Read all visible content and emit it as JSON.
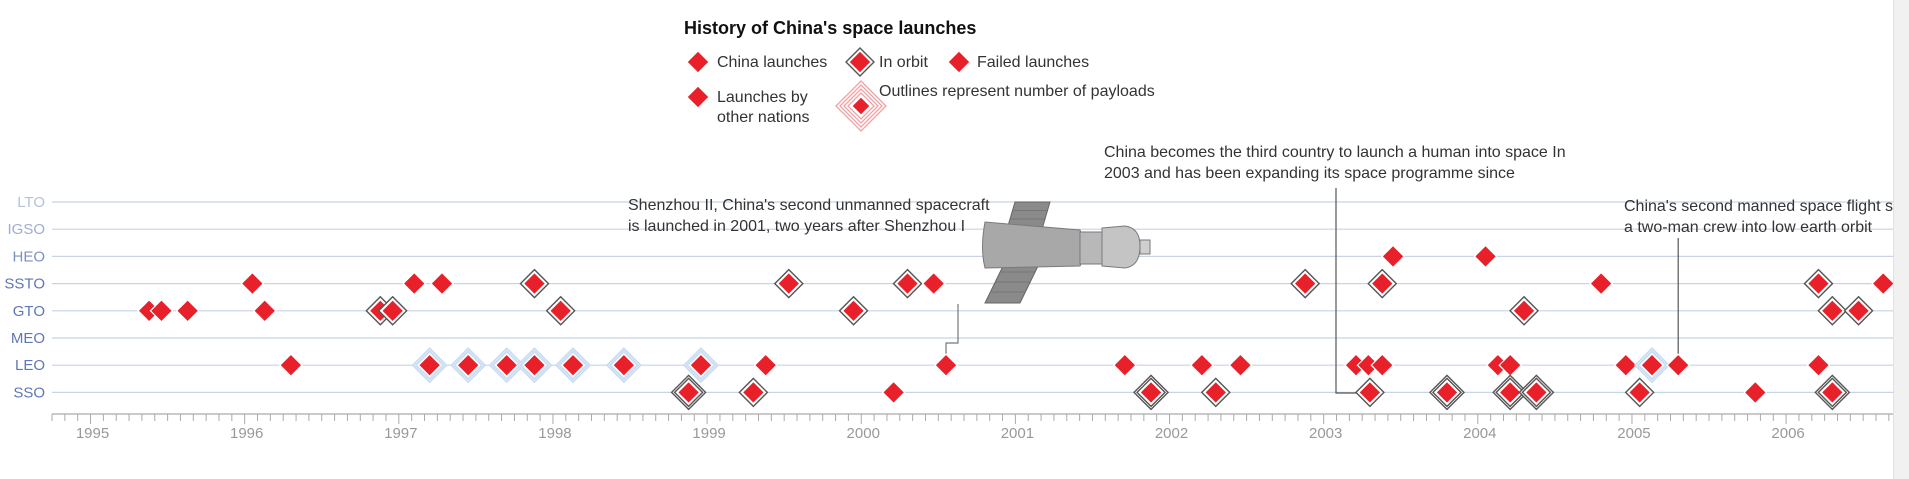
{
  "chart_data": {
    "type": "scatter",
    "title": "History of China's space launches",
    "legend": {
      "placement": "top-center",
      "items": [
        {
          "key": "china",
          "label": "China launches"
        },
        {
          "key": "orbit",
          "label": "In orbit"
        },
        {
          "key": "failed",
          "label": "Failed launches"
        },
        {
          "key": "other",
          "label": "Launches by other nations"
        },
        {
          "key": "payload",
          "label": "Outlines represent number of payloads"
        }
      ]
    },
    "y_categories": [
      "LTO",
      "IGSO",
      "HEO",
      "SSTO",
      "GTO",
      "MEO",
      "LEO",
      "SSO"
    ],
    "y_category_colors": [
      "#b4c1db",
      "#9eaed0",
      "#7b90c0",
      "#5f77b4",
      "#5f77b4",
      "#5f77b4",
      "#5f77b4",
      "#5f77b4"
    ],
    "x_ticks": [
      1995,
      1996,
      1997,
      1998,
      1999,
      2000,
      2001,
      2002,
      2003,
      2004,
      2005,
      2006
    ],
    "x_range": [
      1994.75,
      2006.7
    ],
    "grid": true,
    "colors": {
      "diamond": "#e8202a",
      "outline": "#555555",
      "payload_outline": "#c8dcf2",
      "axis": "#aaaaaa",
      "grid": "#c8d3e6"
    },
    "series": [
      {
        "orbit": "HEO",
        "points": [
          {
            "x": 2003.45,
            "type": "orbit"
          },
          {
            "x": 2004.05,
            "type": "orbit"
          }
        ]
      },
      {
        "orbit": "SSTO",
        "points": [
          {
            "x": 1996.05,
            "type": "orbit"
          },
          {
            "x": 1997.1,
            "type": "orbit"
          },
          {
            "x": 1997.28,
            "type": "orbit"
          },
          {
            "x": 1997.88,
            "type": "orbit",
            "outlines": 1
          },
          {
            "x": 1999.53,
            "type": "orbit",
            "outlines": 1
          },
          {
            "x": 2000.3,
            "type": "orbit",
            "outlines": 1
          },
          {
            "x": 2000.47,
            "type": "orbit"
          },
          {
            "x": 2002.88,
            "type": "orbit",
            "outlines": 1
          },
          {
            "x": 2003.38,
            "type": "orbit",
            "outlines": 1
          },
          {
            "x": 2004.8,
            "type": "orbit"
          },
          {
            "x": 2006.21,
            "type": "orbit",
            "outlines": 1
          },
          {
            "x": 2006.63,
            "type": "orbit"
          }
        ]
      },
      {
        "orbit": "GTO",
        "points": [
          {
            "x": 1995.38,
            "type": "orbit"
          },
          {
            "x": 1995.46,
            "type": "orbit"
          },
          {
            "x": 1995.63,
            "type": "orbit"
          },
          {
            "x": 1996.13,
            "type": "orbit"
          },
          {
            "x": 1996.88,
            "type": "orbit",
            "outlines": 1
          },
          {
            "x": 1996.96,
            "type": "orbit",
            "outlines": 1
          },
          {
            "x": 1998.05,
            "type": "orbit",
            "outlines": 1
          },
          {
            "x": 1999.95,
            "type": "orbit",
            "outlines": 1
          },
          {
            "x": 2004.3,
            "type": "orbit",
            "outlines": 1
          },
          {
            "x": 2006.3,
            "type": "orbit",
            "outlines": 1
          },
          {
            "x": 2006.47,
            "type": "orbit",
            "outlines": 1
          }
        ]
      },
      {
        "orbit": "LEO",
        "points": [
          {
            "x": 1996.3,
            "type": "orbit"
          },
          {
            "x": 1997.2,
            "type": "orbit",
            "payload": true
          },
          {
            "x": 1997.45,
            "type": "orbit",
            "payload": true
          },
          {
            "x": 1997.7,
            "type": "orbit",
            "payload": true
          },
          {
            "x": 1997.88,
            "type": "orbit",
            "payload": true
          },
          {
            "x": 1998.13,
            "type": "orbit",
            "payload": true
          },
          {
            "x": 1998.46,
            "type": "orbit",
            "payload": true
          },
          {
            "x": 1998.96,
            "type": "orbit",
            "payload": true
          },
          {
            "x": 1999.38,
            "type": "orbit"
          },
          {
            "x": 2000.55,
            "type": "orbit"
          },
          {
            "x": 2001.71,
            "type": "orbit"
          },
          {
            "x": 2002.21,
            "type": "orbit"
          },
          {
            "x": 2002.46,
            "type": "orbit"
          },
          {
            "x": 2003.21,
            "type": "orbit"
          },
          {
            "x": 2003.29,
            "type": "orbit"
          },
          {
            "x": 2003.38,
            "type": "orbit"
          },
          {
            "x": 2004.13,
            "type": "orbit"
          },
          {
            "x": 2004.21,
            "type": "orbit"
          },
          {
            "x": 2004.96,
            "type": "orbit"
          },
          {
            "x": 2005.13,
            "type": "orbit",
            "payload": true
          },
          {
            "x": 2005.3,
            "type": "orbit"
          },
          {
            "x": 2006.21,
            "type": "orbit"
          }
        ]
      },
      {
        "orbit": "SSO",
        "points": [
          {
            "x": 1998.88,
            "type": "orbit",
            "outlines": 2
          },
          {
            "x": 1999.3,
            "type": "orbit",
            "outlines": 1
          },
          {
            "x": 2000.21,
            "type": "orbit"
          },
          {
            "x": 2001.88,
            "type": "orbit",
            "outlines": 2
          },
          {
            "x": 2002.3,
            "type": "orbit",
            "outlines": 1
          },
          {
            "x": 2003.3,
            "type": "orbit",
            "outlines": 1
          },
          {
            "x": 2003.8,
            "type": "orbit",
            "outlines": 2
          },
          {
            "x": 2004.21,
            "type": "orbit",
            "outlines": 2
          },
          {
            "x": 2004.38,
            "type": "orbit",
            "outlines": 2
          },
          {
            "x": 2005.05,
            "type": "orbit",
            "outlines": 1
          },
          {
            "x": 2005.8,
            "type": "orbit"
          },
          {
            "x": 2006.3,
            "type": "orbit",
            "outlines": 2
          }
        ]
      }
    ],
    "annotations": [
      {
        "lines": [
          "Shenzhou II, China's second unmanned spacecraft",
          "is launched in 2001, two years after Shenzhou I"
        ]
      },
      {
        "lines": [
          "China becomes the third country to launch a human into space In",
          "2003 and has been expanding its space programme since"
        ]
      },
      {
        "lines": [
          "China's second manned space flight se",
          "a two-man crew into low earth orbit"
        ]
      }
    ]
  }
}
